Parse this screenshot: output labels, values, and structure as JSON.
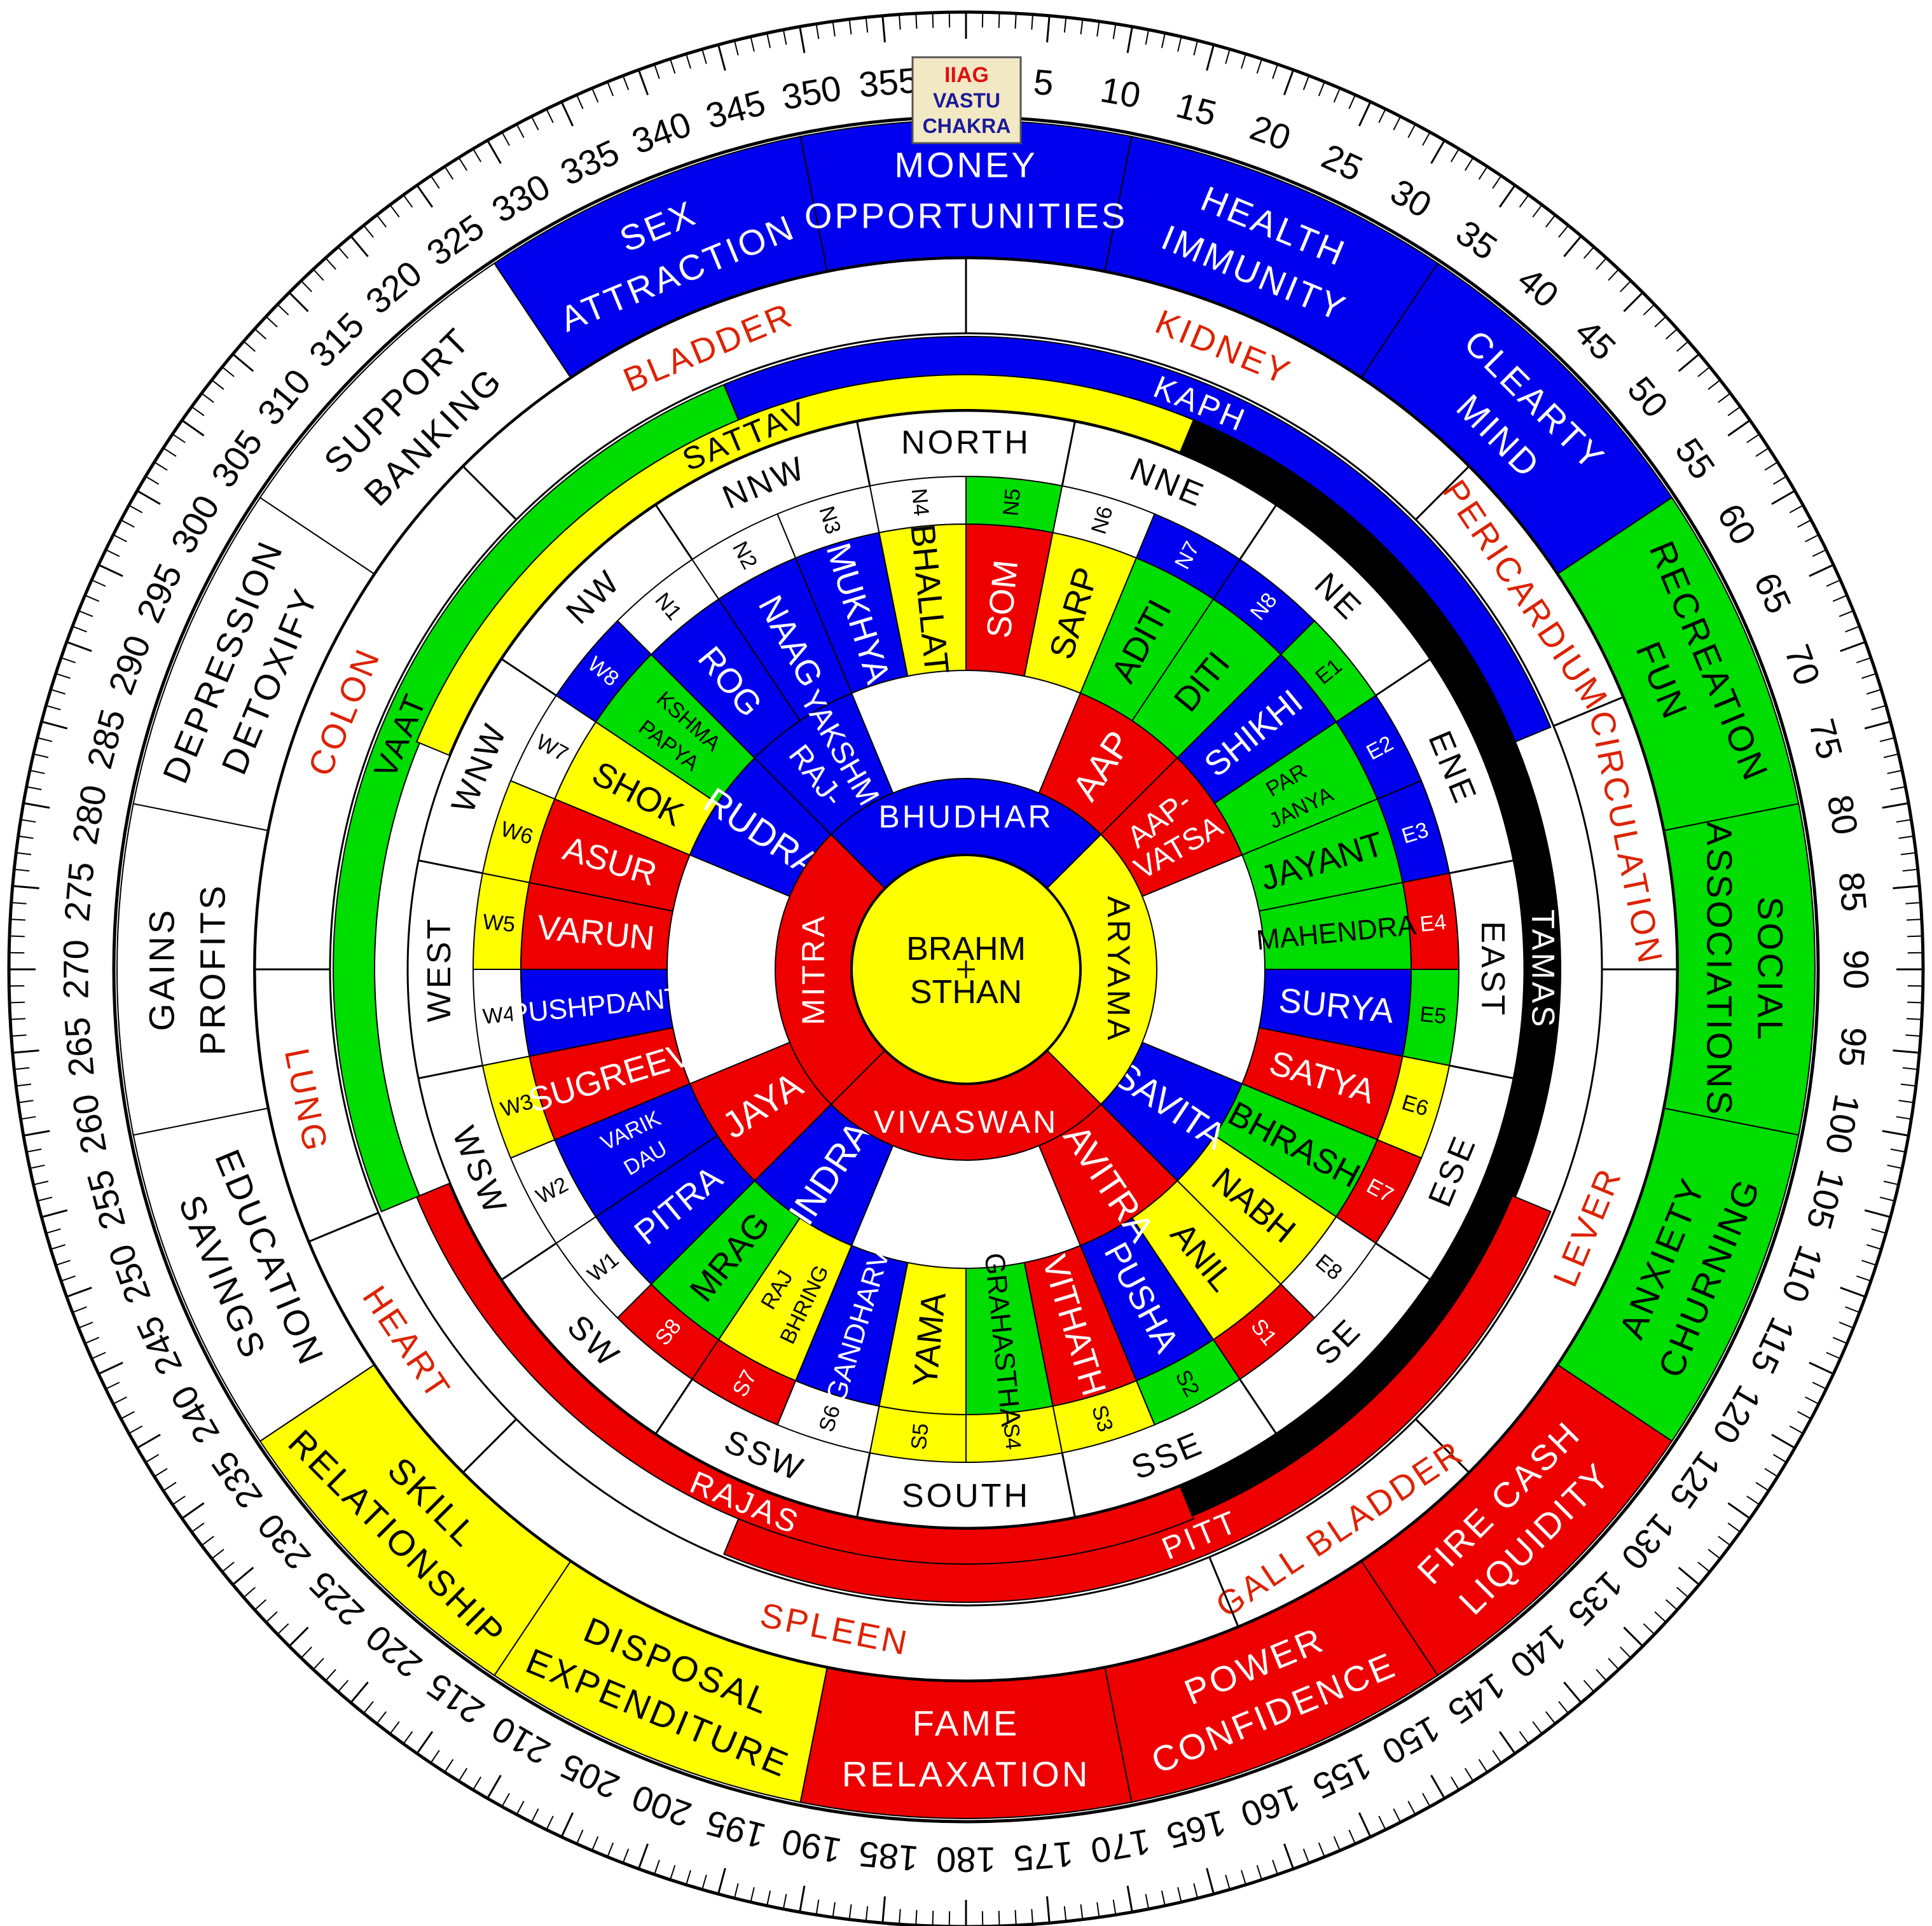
{
  "title": {
    "line1": "IIAG",
    "line2": "VASTU",
    "line3": "CHAKRA"
  },
  "colors": {
    "blue": "#0000ee",
    "red": "#ee0000",
    "green": "#00dd00",
    "yellow": "#ffff00",
    "black": "#000000",
    "white": "#ffffff",
    "organ_text": "#dd2200",
    "badge_bg": "#f2e8c4",
    "badge_red": "#dd1111",
    "badge_blue": "#1a1a99"
  },
  "degree_labels": [
    "5",
    "10",
    "15",
    "20",
    "25",
    "30",
    "35",
    "40",
    "45",
    "50",
    "55",
    "60",
    "65",
    "70",
    "75",
    "80",
    "85",
    "90",
    "95",
    "100",
    "105",
    "110",
    "115",
    "120",
    "125",
    "130",
    "135",
    "140",
    "145",
    "150",
    "155",
    "160",
    "165",
    "170",
    "175",
    "180",
    "185",
    "190",
    "195",
    "200",
    "205",
    "210",
    "215",
    "220",
    "225",
    "230",
    "235",
    "240",
    "245",
    "250",
    "255",
    "260",
    "265",
    "270",
    "275",
    "280",
    "285",
    "290",
    "295",
    "300",
    "305",
    "310",
    "315",
    "320",
    "325",
    "330",
    "335",
    "340",
    "345",
    "350",
    "355"
  ],
  "life_areas": [
    {
      "l1": "HEALTH",
      "l2": "IMMUNITY",
      "color": "blue",
      "start": 11.25,
      "end": 33.75
    },
    {
      "l1": "CLEARTY",
      "l2": "MIND",
      "color": "blue",
      "start": 33.75,
      "end": 56.25
    },
    {
      "l1": "RECREATION",
      "l2": "FUN",
      "color": "green",
      "start": 56.25,
      "end": 78.75
    },
    {
      "l1": "SOCIAL",
      "l2": "ASSOCIATIONS",
      "color": "green",
      "start": 78.75,
      "end": 101.25
    },
    {
      "l1": "ANXIETY",
      "l2": "CHURNING",
      "color": "green",
      "start": 101.25,
      "end": 123.75
    },
    {
      "l1": "FIRE CASH",
      "l2": "LIQUIDITY",
      "color": "red",
      "start": 123.75,
      "end": 146.25
    },
    {
      "l1": "POWER",
      "l2": "CONFIDENCE",
      "color": "red",
      "start": 146.25,
      "end": 168.75
    },
    {
      "l1": "FAME",
      "l2": "RELAXATION",
      "color": "red",
      "start": 168.75,
      "end": 191.25
    },
    {
      "l1": "DISPOSAL",
      "l2": "EXPENDITURE",
      "color": "yellow",
      "start": 191.25,
      "end": 213.75
    },
    {
      "l1": "SKILL",
      "l2": "RELATIONSHIP",
      "color": "yellow",
      "start": 213.75,
      "end": 236.25
    },
    {
      "l1": "EDUCATION",
      "l2": "SAVINGS",
      "color": "white",
      "start": 236.25,
      "end": 258.75
    },
    {
      "l1": "GAINS",
      "l2": "PROFITS",
      "color": "white",
      "start": 258.75,
      "end": 281.25
    },
    {
      "l1": "DEPRESSION",
      "l2": "DETOXIFY",
      "color": "white",
      "start": 281.25,
      "end": 303.75
    },
    {
      "l1": "SUPPORT",
      "l2": "BANKING",
      "color": "white",
      "start": 303.75,
      "end": 326.25
    },
    {
      "l1": "SEX",
      "l2": "ATTRACTION",
      "color": "blue",
      "start": 326.25,
      "end": 348.75
    },
    {
      "l1": "MONEY",
      "l2": "OPPORTUNITIES",
      "color": "blue",
      "start": 348.75,
      "end": 371.25
    }
  ],
  "organs": [
    {
      "text": "KIDNEY",
      "start": 0,
      "end": 45
    },
    {
      "text": "PERICARDIUM",
      "start": 45,
      "end": 67.5
    },
    {
      "text": "CIRCULATION",
      "start": 67.5,
      "end": 90
    },
    {
      "text": "LEVER",
      "start": 90,
      "end": 135
    },
    {
      "text": "GALL BLADDER",
      "start": 135,
      "end": 157.5
    },
    {
      "text": "SPLEEN",
      "start": 157.5,
      "end": 225
    },
    {
      "text": "HEART",
      "start": 225,
      "end": 247.5
    },
    {
      "text": "LUNG",
      "start": 247.5,
      "end": 270
    },
    {
      "text": "COLON",
      "start": 270,
      "end": 315
    },
    {
      "text": "BLADDER",
      "start": 315,
      "end": 360
    }
  ],
  "gunas": [
    {
      "text": "KAPH",
      "start": -22.5,
      "end": 67.5,
      "color": "blue"
    },
    {
      "text": "TAMAS",
      "start": 22.5,
      "end": 157.5,
      "color": "black"
    },
    {
      "text": "PITT",
      "start": 112.5,
      "end": 202.5,
      "color": "red"
    },
    {
      "text": "RAJAS",
      "start": 157.5,
      "end": 247.5,
      "color": "red"
    },
    {
      "text": "VAAT",
      "start": 247.5,
      "end": 337.5,
      "color": "green"
    },
    {
      "text": "SATTAV",
      "start": 292.5,
      "end": 382.5,
      "color": "yellow"
    }
  ],
  "directions": [
    "NORTH",
    "NNE",
    "NE",
    "ENE",
    "EAST",
    "ESE",
    "SE",
    "SSE",
    "SOUTH",
    "SSW",
    "SW",
    "WSW",
    "WEST",
    "WNW",
    "NW",
    "NNW"
  ],
  "zone_codes": [
    {
      "code": "N5",
      "color": "green"
    },
    {
      "code": "N6",
      "color": "white"
    },
    {
      "code": "N7",
      "color": "blue"
    },
    {
      "code": "N8",
      "color": "blue"
    },
    {
      "code": "E1",
      "color": "green"
    },
    {
      "code": "E2",
      "color": "blue"
    },
    {
      "code": "E3",
      "color": "blue"
    },
    {
      "code": "E4",
      "color": "red"
    },
    {
      "code": "E5",
      "color": "green"
    },
    {
      "code": "E6",
      "color": "yellow"
    },
    {
      "code": "E7",
      "color": "red"
    },
    {
      "code": "E8",
      "color": "white"
    },
    {
      "code": "S1",
      "color": "red"
    },
    {
      "code": "S2",
      "color": "green"
    },
    {
      "code": "S3",
      "color": "yellow"
    },
    {
      "code": "S4",
      "color": "yellow"
    },
    {
      "code": "S5",
      "color": "yellow"
    },
    {
      "code": "S6",
      "color": "white"
    },
    {
      "code": "S7",
      "color": "red"
    },
    {
      "code": "S8",
      "color": "red"
    },
    {
      "code": "W1",
      "color": "white"
    },
    {
      "code": "W2",
      "color": "white"
    },
    {
      "code": "W3",
      "color": "yellow"
    },
    {
      "code": "W4",
      "color": "white"
    },
    {
      "code": "W5",
      "color": "yellow"
    },
    {
      "code": "W6",
      "color": "yellow"
    },
    {
      "code": "W7",
      "color": "white"
    },
    {
      "code": "W8",
      "color": "blue"
    },
    {
      "code": "N1",
      "color": "white"
    },
    {
      "code": "N2",
      "color": "white"
    },
    {
      "code": "N3",
      "color": "white"
    },
    {
      "code": "N4",
      "color": "white"
    }
  ],
  "devtas": [
    {
      "l1": "SOM",
      "color": "red"
    },
    {
      "l1": "SARP",
      "color": "yellow"
    },
    {
      "l1": "ADITI",
      "color": "green"
    },
    {
      "l1": "DITI",
      "color": "green"
    },
    {
      "l1": "SHIKHI",
      "color": "blue"
    },
    {
      "l1": "PAR",
      "l2": "JANYA",
      "color": "green"
    },
    {
      "l1": "JAYANT",
      "color": "green"
    },
    {
      "l1": "MAHENDRA",
      "color": "green"
    },
    {
      "l1": "SURYA",
      "color": "blue"
    },
    {
      "l1": "SATYA",
      "color": "red"
    },
    {
      "l1": "BHRASH",
      "color": "green"
    },
    {
      "l1": "NABH",
      "color": "yellow"
    },
    {
      "l1": "ANIL",
      "color": "yellow"
    },
    {
      "l1": "PUSHA",
      "color": "blue"
    },
    {
      "l1": "VITHATH",
      "color": "red"
    },
    {
      "l1": "GRAHASTHA",
      "color": "green"
    },
    {
      "l1": "YAMA",
      "color": "yellow"
    },
    {
      "l1": "GANDHARV",
      "color": "blue"
    },
    {
      "l1": "BHRING",
      "l2": "RAJ",
      "color": "yellow"
    },
    {
      "l1": "MRAG",
      "color": "green"
    },
    {
      "l1": "PITRA",
      "color": "blue"
    },
    {
      "l1": "DAU",
      "l2": "VARIK",
      "color": "blue"
    },
    {
      "l1": "SUGREEV",
      "color": "red"
    },
    {
      "l1": "PUSHPDANT",
      "color": "blue"
    },
    {
      "l1": "VARUN",
      "color": "red"
    },
    {
      "l1": "ASUR",
      "color": "red"
    },
    {
      "l1": "SHOK",
      "color": "yellow"
    },
    {
      "l1": "PAPYA",
      "l2": "KSHMA",
      "color": "green"
    },
    {
      "l1": "ROG",
      "color": "blue"
    },
    {
      "l1": "NAAG",
      "color": "blue"
    },
    {
      "l1": "MUKHYA",
      "color": "blue"
    },
    {
      "l1": "BHALLAT",
      "color": "yellow"
    }
  ],
  "mid_devtas": [
    {
      "text": "AAP",
      "color": "red"
    },
    {
      "text": "AAP-",
      "text2": "VATSA",
      "color": "red"
    },
    {
      "text": "SAVITA",
      "color": "blue"
    },
    {
      "text": "SAVITRA",
      "color": "red"
    },
    {
      "text": "INDRA",
      "color": "blue"
    },
    {
      "text": "JAYA",
      "color": "red"
    },
    {
      "text": "RUDRA",
      "color": "blue"
    },
    {
      "text": "RAJ-",
      "text2": "YAKSHMA",
      "color": "blue"
    }
  ],
  "inner_ring": [
    {
      "text": "BHUDHAR",
      "color": "blue"
    },
    {
      "text": "ARYAMA",
      "color": "yellow"
    },
    {
      "text": "VIVASWAN",
      "color": "red"
    },
    {
      "text": "MITRA",
      "color": "red"
    }
  ],
  "center": {
    "line1": "BRAHM",
    "line2": "STHAN"
  }
}
